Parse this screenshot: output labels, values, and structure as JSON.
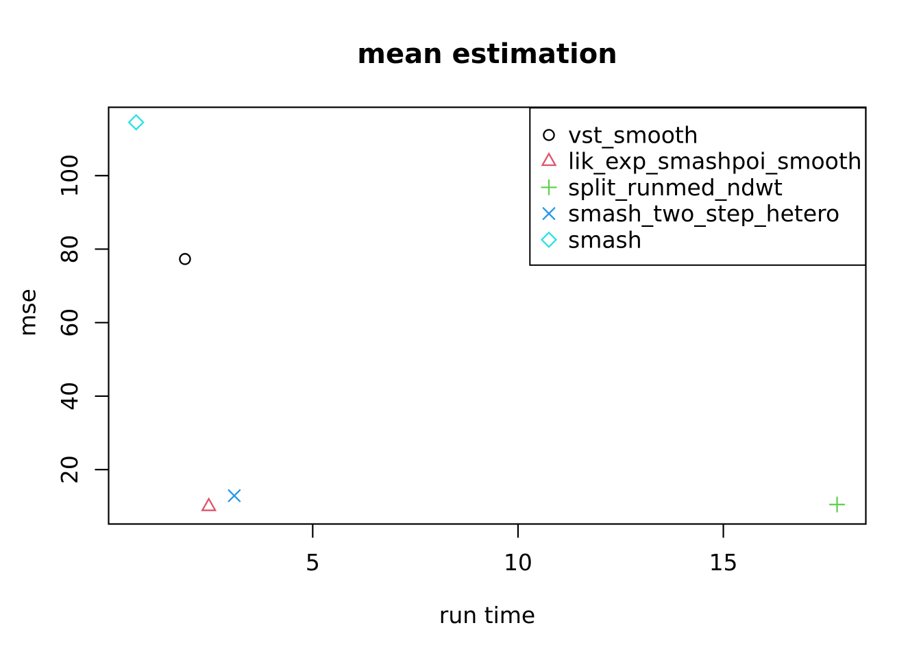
{
  "chart_data": {
    "type": "scatter",
    "title": "mean estimation",
    "xlabel": "run time",
    "ylabel": "mse",
    "xlim": [
      0.03,
      18.47
    ],
    "ylim": [
      5.2,
      118.6
    ],
    "xticks": [
      5,
      10,
      15
    ],
    "yticks": [
      20,
      40,
      60,
      80,
      100
    ],
    "grid": false,
    "background": "#ffffff",
    "axis_color": "#000000",
    "legend_position": "topright",
    "series": [
      {
        "name": "vst_smooth",
        "marker": "circle",
        "color": "#000000",
        "points": [
          {
            "x": 1.89,
            "y": 77.3
          }
        ]
      },
      {
        "name": "lik_exp_smashpoi_smooth",
        "marker": "triangle",
        "color": "#DF536B",
        "points": [
          {
            "x": 2.47,
            "y": 10.0
          }
        ]
      },
      {
        "name": "split_runmed_ndwt",
        "marker": "plus",
        "color": "#61D04F",
        "points": [
          {
            "x": 17.77,
            "y": 10.5
          }
        ]
      },
      {
        "name": "smash_two_step_hetero",
        "marker": "x",
        "color": "#2297E6",
        "points": [
          {
            "x": 3.09,
            "y": 12.9
          }
        ]
      },
      {
        "name": "smash",
        "marker": "diamond",
        "color": "#28E2E5",
        "points": [
          {
            "x": 0.7,
            "y": 114.5
          }
        ]
      }
    ]
  }
}
